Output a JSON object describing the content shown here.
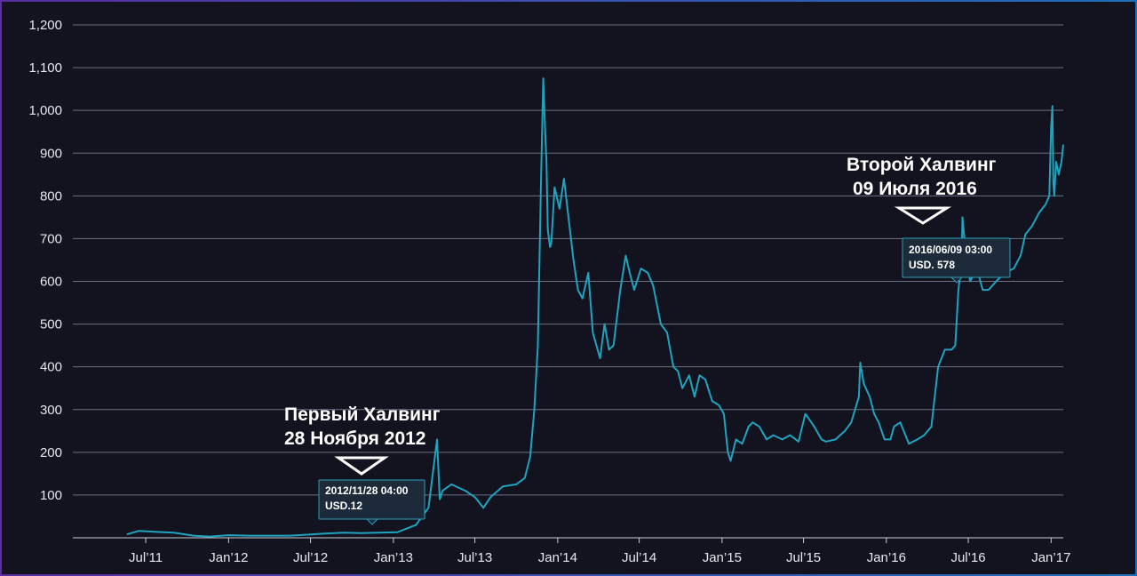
{
  "colors": {
    "background": "#12131f",
    "line": "#1fa3bf",
    "grid": "#8d90a6",
    "text": "#e6e8ef",
    "tooltip_bg": "#1d2a3a",
    "tooltip_border": "#2a9fba"
  },
  "chart_data": {
    "type": "line",
    "title": "",
    "xlabel": "",
    "ylabel": "",
    "ylim": [
      0,
      1200
    ],
    "xlim": [
      "2011-01-20",
      "2017-01-28"
    ],
    "grid": true,
    "y_ticks": [
      "100",
      "200",
      "300",
      "400",
      "500",
      "600",
      "700",
      "800",
      "900",
      "1,000",
      "1,100",
      "1,200"
    ],
    "x_ticks": [
      {
        "date": "2011-07-01",
        "label": "Jul’11"
      },
      {
        "date": "2012-01-01",
        "label": "Jan’12"
      },
      {
        "date": "2012-07-01",
        "label": "Jul’12"
      },
      {
        "date": "2013-01-01",
        "label": "Jan’13"
      },
      {
        "date": "2013-07-01",
        "label": "Jul’13"
      },
      {
        "date": "2014-01-01",
        "label": "Jan’14"
      },
      {
        "date": "2014-07-01",
        "label": "Jul’14"
      },
      {
        "date": "2015-01-01",
        "label": "Jan’15"
      },
      {
        "date": "2015-07-01",
        "label": "Jul’15"
      },
      {
        "date": "2016-01-01",
        "label": "Jan’16"
      },
      {
        "date": "2016-07-01",
        "label": "Jul’16"
      },
      {
        "date": "2017-01-01",
        "label": "Jan’17"
      }
    ],
    "series": [
      {
        "x": [
          "2011-05-20",
          "2011-06-15",
          "2011-07-20",
          "2011-09-01",
          "2011-10-15",
          "2011-11-20",
          "2012-01-01",
          "2012-02-15",
          "2012-04-01",
          "2012-05-15",
          "2012-06-20",
          "2012-08-01",
          "2012-09-15",
          "2012-10-20",
          "2012-11-28",
          "2013-01-10",
          "2013-02-20",
          "2013-03-20",
          "2013-04-08",
          "2013-04-14",
          "2013-04-20",
          "2013-05-10",
          "2013-06-10",
          "2013-07-01",
          "2013-07-20",
          "2013-08-05",
          "2013-09-01",
          "2013-10-01",
          "2013-10-20",
          "2013-11-01",
          "2013-11-10",
          "2013-11-18",
          "2013-11-25",
          "2013-11-30",
          "2013-12-04",
          "2013-12-07",
          "2013-12-10",
          "2013-12-15",
          "2013-12-18",
          "2013-12-25",
          "2014-01-05",
          "2014-01-15",
          "2014-02-05",
          "2014-02-15",
          "2014-02-25",
          "2014-03-10",
          "2014-03-20",
          "2014-04-05",
          "2014-04-15",
          "2014-04-25",
          "2014-05-05",
          "2014-05-20",
          "2014-06-01",
          "2014-06-10",
          "2014-06-20",
          "2014-07-05",
          "2014-07-20",
          "2014-08-01",
          "2014-08-18",
          "2014-09-01",
          "2014-09-15",
          "2014-09-25",
          "2014-10-05",
          "2014-10-20",
          "2014-11-01",
          "2014-11-12",
          "2014-11-25",
          "2014-12-10",
          "2014-12-25",
          "2015-01-05",
          "2015-01-14",
          "2015-01-20",
          "2015-02-01",
          "2015-02-15",
          "2015-03-01",
          "2015-03-10",
          "2015-03-25",
          "2015-04-10",
          "2015-04-25",
          "2015-05-15",
          "2015-06-01",
          "2015-06-20",
          "2015-07-05",
          "2015-07-12",
          "2015-07-25",
          "2015-08-10",
          "2015-08-20",
          "2015-09-10",
          "2015-10-01",
          "2015-10-15",
          "2015-11-01",
          "2015-11-04",
          "2015-11-12",
          "2015-11-25",
          "2015-12-05",
          "2015-12-15",
          "2015-12-28",
          "2016-01-10",
          "2016-01-18",
          "2016-02-01",
          "2016-02-20",
          "2016-03-10",
          "2016-03-25",
          "2016-04-10",
          "2016-04-25",
          "2016-05-10",
          "2016-05-25",
          "2016-06-02",
          "2016-06-09",
          "2016-06-16",
          "2016-06-18",
          "2016-06-25",
          "2016-07-05",
          "2016-07-20",
          "2016-08-02",
          "2016-08-15",
          "2016-09-01",
          "2016-09-20",
          "2016-10-10",
          "2016-10-25",
          "2016-11-05",
          "2016-11-20",
          "2016-12-05",
          "2016-12-20",
          "2016-12-28",
          "2017-01-01",
          "2017-01-04",
          "2017-01-06",
          "2017-01-08",
          "2017-01-12",
          "2017-01-18",
          "2017-01-24",
          "2017-01-28"
        ],
        "y": [
          8,
          16,
          14,
          12,
          5,
          3,
          6,
          5,
          5,
          5,
          7,
          10,
          12,
          11,
          12,
          13,
          30,
          70,
          230,
          90,
          110,
          125,
          110,
          95,
          70,
          95,
          120,
          125,
          140,
          190,
          300,
          450,
          840,
          1075,
          950,
          880,
          720,
          680,
          690,
          820,
          770,
          840,
          650,
          580,
          560,
          620,
          480,
          420,
          500,
          440,
          450,
          580,
          660,
          620,
          580,
          630,
          620,
          590,
          500,
          480,
          400,
          390,
          350,
          380,
          330,
          380,
          370,
          320,
          310,
          290,
          200,
          180,
          230,
          220,
          260,
          270,
          260,
          230,
          240,
          230,
          240,
          225,
          290,
          280,
          260,
          230,
          225,
          230,
          250,
          270,
          330,
          410,
          360,
          330,
          290,
          270,
          230,
          230,
          260,
          270,
          220,
          230,
          240,
          260,
          400,
          440,
          440,
          450,
          578,
          650,
          750,
          670,
          600,
          630,
          580,
          580,
          600,
          620,
          630,
          660,
          710,
          730,
          760,
          780,
          800,
          960,
          1010,
          830,
          800,
          880,
          850,
          880,
          920
        ]
      }
    ],
    "annotations": [
      {
        "line1": "Первый Халвинг",
        "line2": "28 Ноября 2012"
      },
      {
        "line1": "Второй Халвинг",
        "line2": "09 Июля 2016"
      }
    ],
    "tooltips": [
      {
        "line1": "2012/11/28 04:00",
        "line2": "USD.12"
      },
      {
        "line1": "2016/06/09 03:00",
        "line2": "USD. 578"
      }
    ]
  }
}
